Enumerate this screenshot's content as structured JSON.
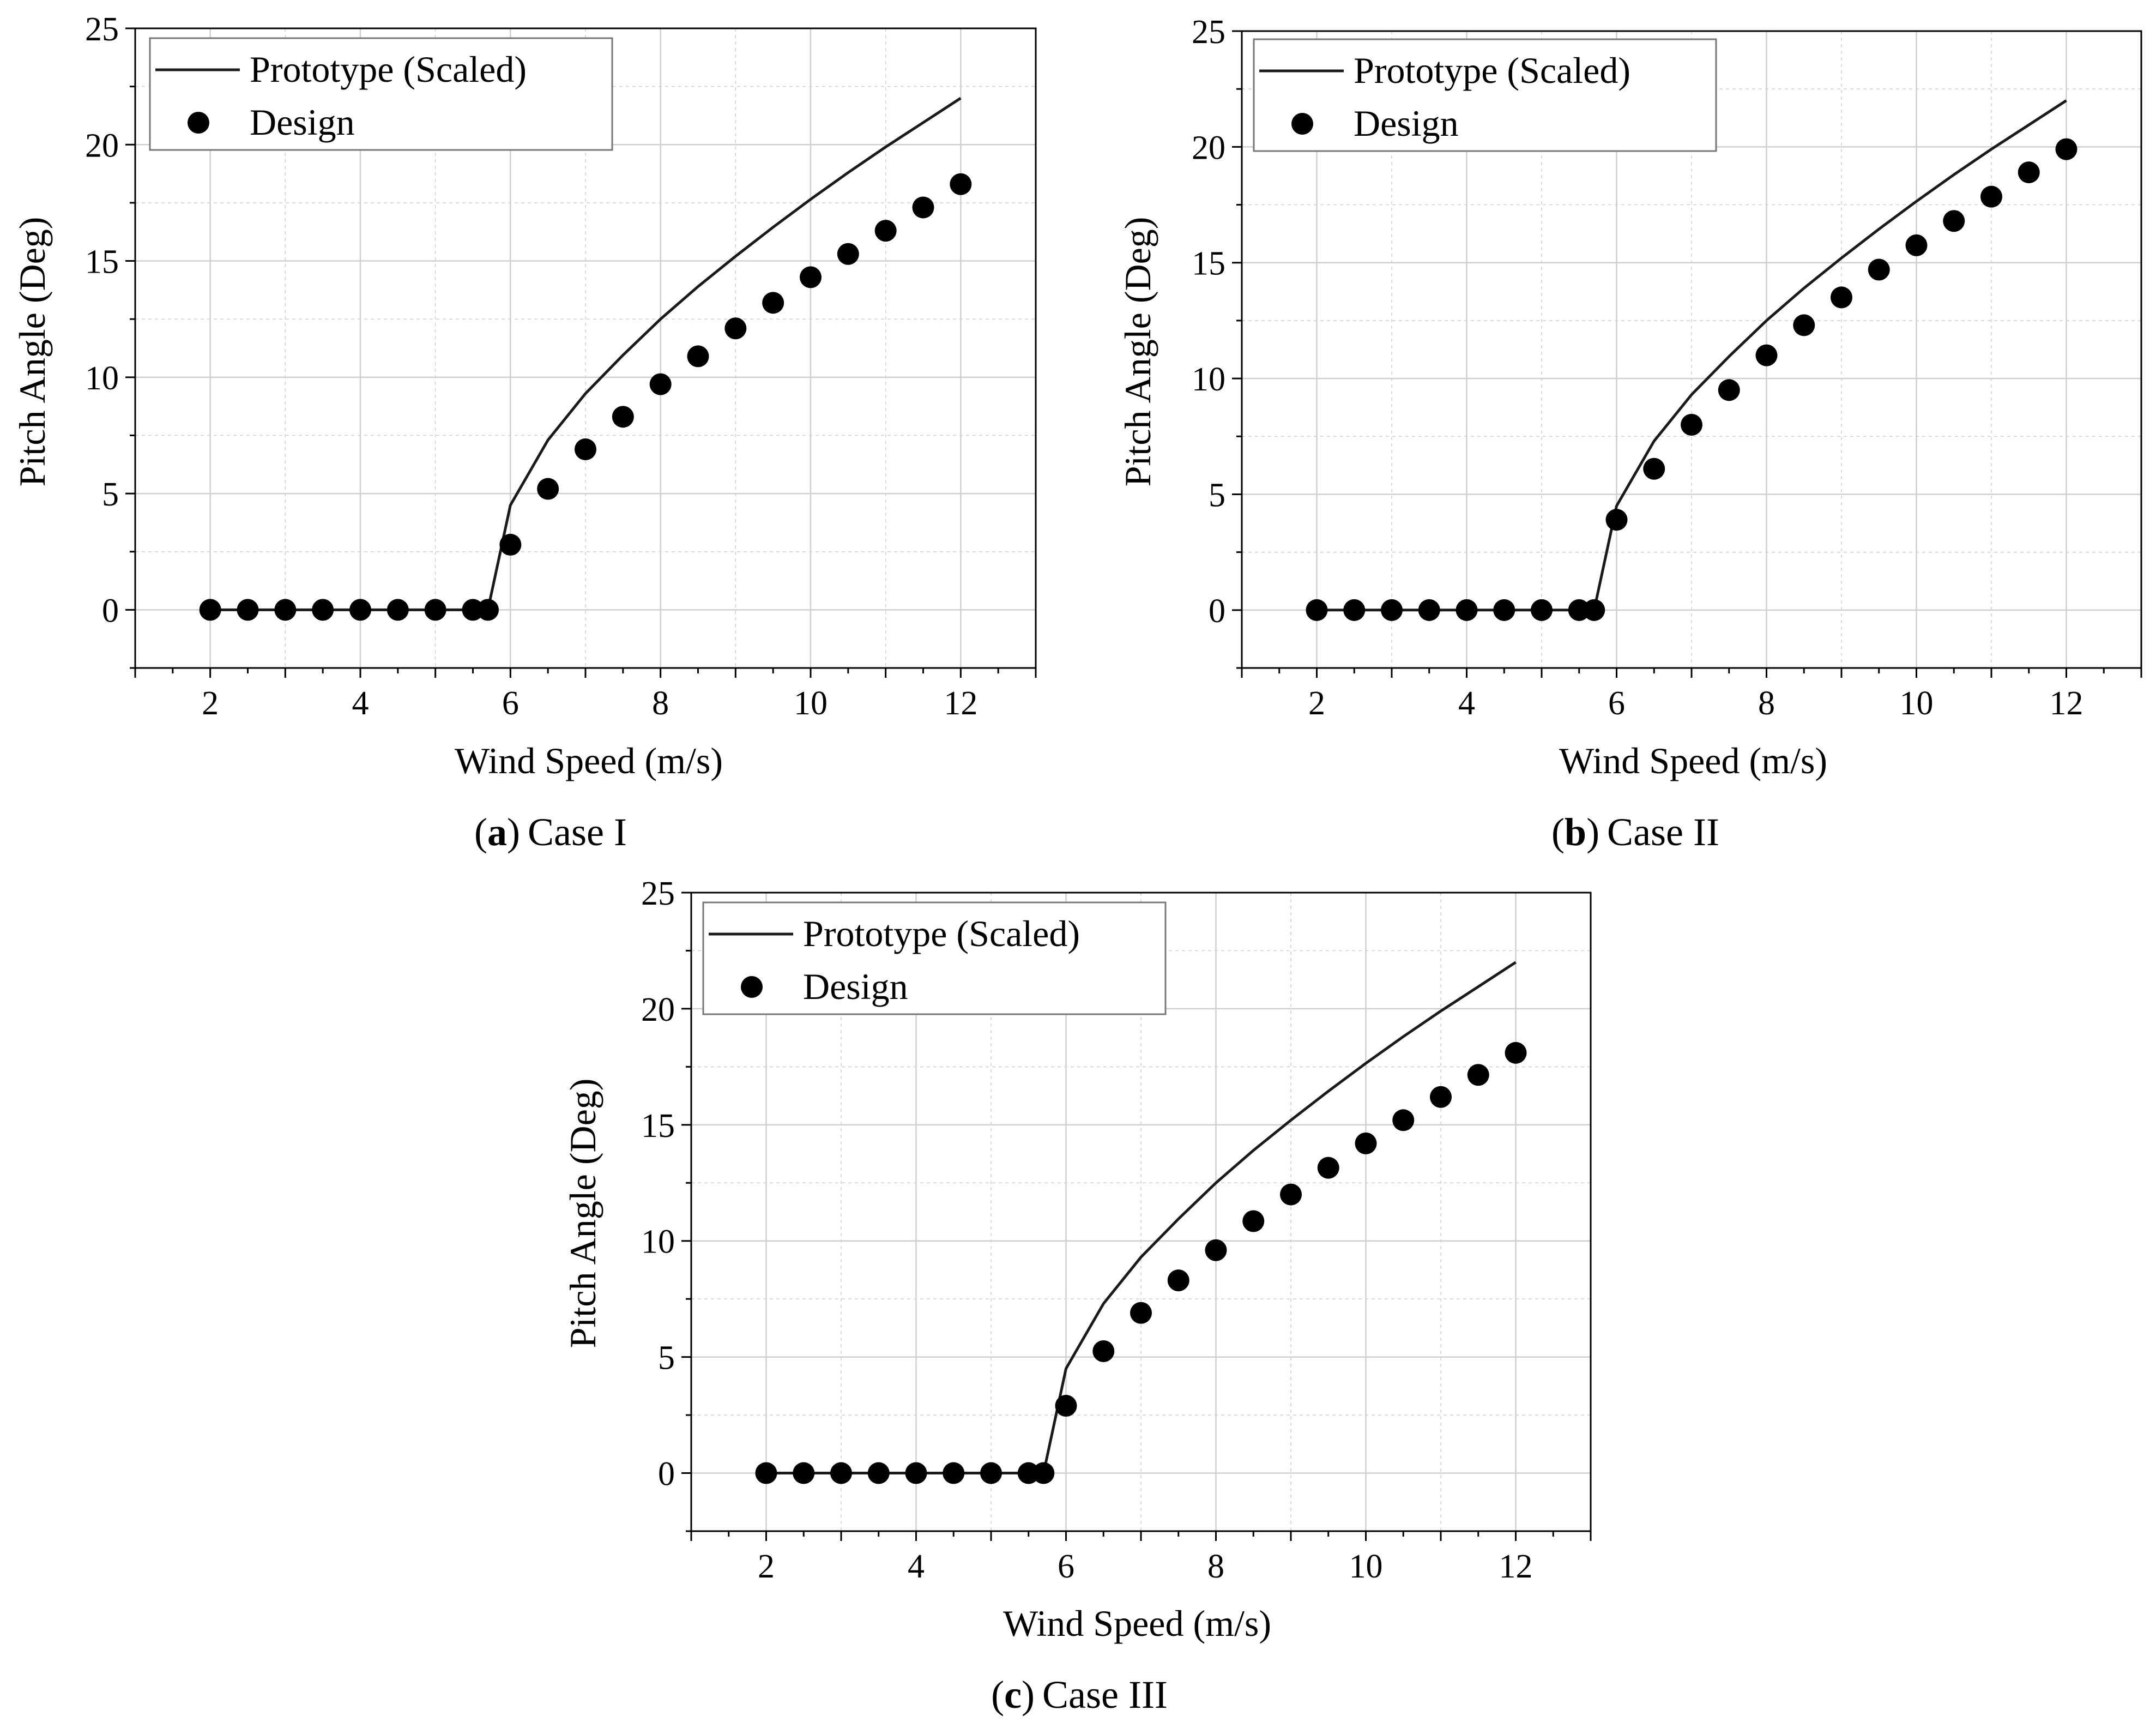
{
  "figure": {
    "charts": [
      {
        "id": "a",
        "caption_letter": "a",
        "caption_text": "Case I"
      },
      {
        "id": "b",
        "caption_letter": "b",
        "caption_text": "Case II"
      },
      {
        "id": "c",
        "caption_letter": "c",
        "caption_text": "Case III"
      }
    ],
    "caption_open": "(",
    "caption_close": ")"
  },
  "colors": {
    "line": "#1a1a1a",
    "marker": "#000000",
    "grid": "#cfcfcf",
    "axis": "#000000"
  },
  "chart_data": [
    {
      "type": "line+scatter",
      "title": "",
      "xlabel": "Wind Speed (m/s)",
      "ylabel": "Pitch Angle (Deg)",
      "xlim": [
        1,
        13
      ],
      "ylim": [
        -2.5,
        25
      ],
      "xticks": [
        2,
        4,
        6,
        8,
        10,
        12
      ],
      "yticks": [
        0,
        5,
        10,
        15,
        20,
        25
      ],
      "grid": true,
      "legend": "top-left",
      "series": [
        {
          "name": "Prototype (Scaled)",
          "style": "line",
          "x": [
            2,
            5.5,
            5.7,
            6,
            6.5,
            7,
            7.5,
            8,
            8.5,
            9,
            9.5,
            10,
            10.5,
            11,
            11.5,
            12
          ],
          "y": [
            0,
            0,
            0,
            4.5,
            7.3,
            9.3,
            10.95,
            12.5,
            13.9,
            15.2,
            16.45,
            17.65,
            18.8,
            19.9,
            20.95,
            22
          ]
        },
        {
          "name": "Design",
          "style": "marker",
          "x": [
            2,
            2.5,
            3,
            3.5,
            4,
            4.5,
            5,
            5.5,
            5.7,
            6,
            6.5,
            7,
            7.5,
            8,
            8.5,
            9,
            9.5,
            10,
            10.5,
            11,
            11.5,
            12
          ],
          "y": [
            0,
            0,
            0,
            0,
            0,
            0,
            0,
            0,
            0,
            2.8,
            5.2,
            6.9,
            8.3,
            9.7,
            10.9,
            12.1,
            13.2,
            14.3,
            15.3,
            16.3,
            17.3,
            18.3
          ]
        }
      ]
    },
    {
      "type": "line+scatter",
      "title": "",
      "xlabel": "Wind Speed (m/s)",
      "ylabel": "Pitch Angle (Deg)",
      "xlim": [
        1,
        13
      ],
      "ylim": [
        -2.5,
        25
      ],
      "xticks": [
        2,
        4,
        6,
        8,
        10,
        12
      ],
      "yticks": [
        0,
        5,
        10,
        15,
        20,
        25
      ],
      "grid": true,
      "legend": "top-left",
      "series": [
        {
          "name": "Prototype (Scaled)",
          "style": "line",
          "x": [
            2,
            5.5,
            5.7,
            6,
            6.5,
            7,
            7.5,
            8,
            8.5,
            9,
            9.5,
            10,
            10.5,
            11,
            11.5,
            12
          ],
          "y": [
            0,
            0,
            0,
            4.5,
            7.3,
            9.3,
            10.95,
            12.5,
            13.9,
            15.2,
            16.45,
            17.65,
            18.8,
            19.9,
            20.95,
            22
          ]
        },
        {
          "name": "Design",
          "style": "marker",
          "x": [
            2,
            2.5,
            3,
            3.5,
            4,
            4.5,
            5,
            5.5,
            5.7,
            6,
            6.5,
            7,
            7.5,
            8,
            8.5,
            9,
            9.5,
            10,
            10.5,
            11,
            11.5,
            12
          ],
          "y": [
            0,
            0,
            0,
            0,
            0,
            0,
            0,
            0,
            0,
            3.9,
            6.1,
            8.0,
            9.5,
            11.0,
            12.3,
            13.5,
            14.7,
            15.75,
            16.8,
            17.85,
            18.9,
            19.9
          ]
        }
      ]
    },
    {
      "type": "line+scatter",
      "title": "",
      "xlabel": "Wind Speed (m/s)",
      "ylabel": "Pitch Angle (Deg)",
      "xlim": [
        1,
        13
      ],
      "ylim": [
        -2.5,
        25
      ],
      "xticks": [
        2,
        4,
        6,
        8,
        10,
        12
      ],
      "yticks": [
        0,
        5,
        10,
        15,
        20,
        25
      ],
      "grid": true,
      "legend": "top-left",
      "series": [
        {
          "name": "Prototype (Scaled)",
          "style": "line",
          "x": [
            2,
            5.5,
            5.7,
            6,
            6.5,
            7,
            7.5,
            8,
            8.5,
            9,
            9.5,
            10,
            10.5,
            11,
            11.5,
            12
          ],
          "y": [
            0,
            0,
            0,
            4.5,
            7.3,
            9.3,
            10.95,
            12.5,
            13.9,
            15.2,
            16.45,
            17.65,
            18.8,
            19.9,
            20.95,
            22
          ]
        },
        {
          "name": "Design",
          "style": "marker",
          "x": [
            2,
            2.5,
            3,
            3.5,
            4,
            4.5,
            5,
            5.5,
            5.7,
            6,
            6.5,
            7,
            7.5,
            8,
            8.5,
            9,
            9.5,
            10,
            10.5,
            11,
            11.5,
            12
          ],
          "y": [
            0,
            0,
            0,
            0,
            0,
            0,
            0,
            0,
            0,
            2.9,
            5.25,
            6.9,
            8.3,
            9.6,
            10.85,
            12.0,
            13.15,
            14.2,
            15.2,
            16.2,
            17.15,
            18.1
          ]
        }
      ]
    }
  ]
}
